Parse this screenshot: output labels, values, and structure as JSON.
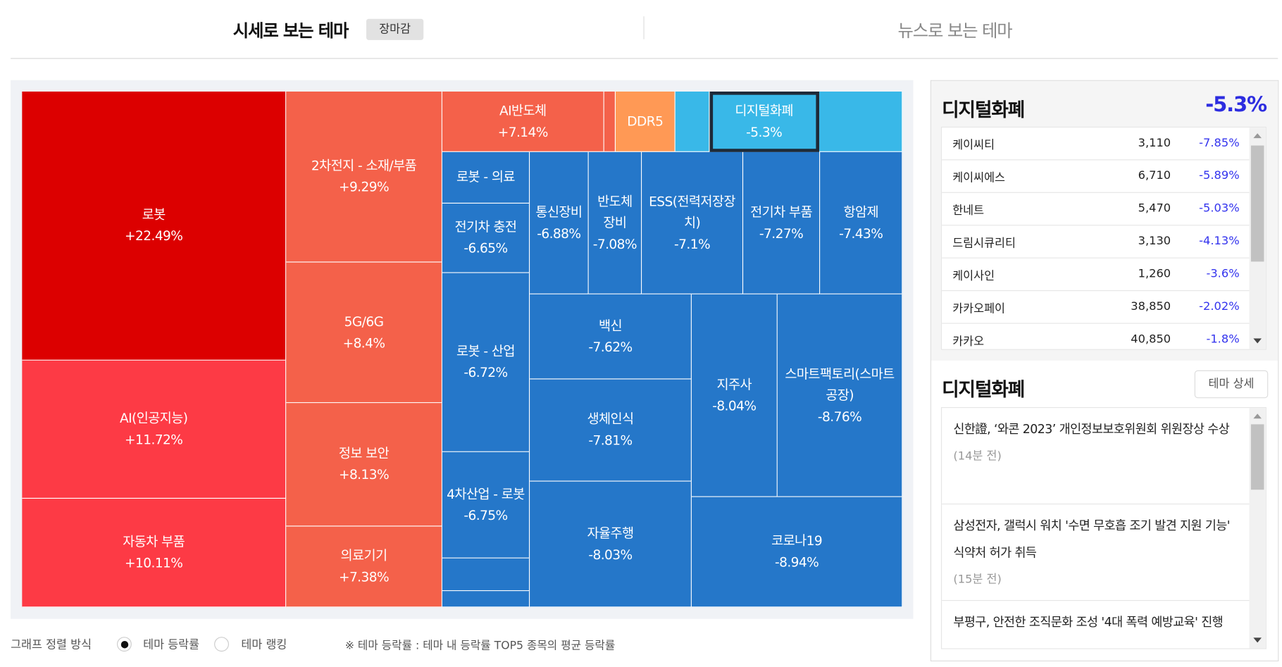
{
  "header": {
    "tab_price": "시세로 보는 테마",
    "market_status": "장마감",
    "tab_news": "뉴스로 보는 테마"
  },
  "treemap": {
    "tiles": [
      {
        "name": "로봇",
        "rate": "+22.49%"
      },
      {
        "name": "AI(인공지능)",
        "rate": "+11.72%"
      },
      {
        "name": "자동차 부품",
        "rate": "+10.11%"
      },
      {
        "name": "2차전지 - 소재/부품",
        "rate": "+9.29%"
      },
      {
        "name": "5G/6G",
        "rate": "+8.4%"
      },
      {
        "name": "정보 보안",
        "rate": "+8.13%"
      },
      {
        "name": "의료기기",
        "rate": "+7.38%"
      },
      {
        "name": "AI반도체",
        "rate": "+7.14%"
      },
      {
        "name": "DDR5",
        "rate": ""
      },
      {
        "name": "디지털화폐",
        "rate": "-5.3%"
      },
      {
        "name": "로봇 - 의료",
        "rate": ""
      },
      {
        "name": "전기차 충전",
        "rate": "-6.65%"
      },
      {
        "name": "로봇 - 산업",
        "rate": "-6.72%"
      },
      {
        "name": "4차산업 - 로봇",
        "rate": "-6.75%"
      },
      {
        "name": "통신장비",
        "rate": "-6.88%"
      },
      {
        "name": "반도체 장비",
        "rate": "-7.08%"
      },
      {
        "name": "ESS(전력저장장치)",
        "rate": "-7.1%"
      },
      {
        "name": "전기차 부품",
        "rate": "-7.27%"
      },
      {
        "name": "항암제",
        "rate": "-7.43%"
      },
      {
        "name": "백신",
        "rate": "-7.62%"
      },
      {
        "name": "생체인식",
        "rate": "-7.81%"
      },
      {
        "name": "자율주행",
        "rate": "-8.03%"
      },
      {
        "name": "지주사",
        "rate": "-8.04%"
      },
      {
        "name": "스마트팩토리(스마트공장)",
        "rate": "-8.76%"
      },
      {
        "name": "코로나19",
        "rate": "-8.94%"
      }
    ],
    "colors": {
      "strong_up": "#dc0000",
      "up": "#fd3a45",
      "mild_up": "#f4614a",
      "slight_up": "#ff9955",
      "slight_down": "#39b8e8",
      "down": "#2577c9"
    },
    "selected": "디지털화폐"
  },
  "footer": {
    "sort_label": "그래프 정렬 방식",
    "option_rate": "테마 등락률",
    "option_rank": "테마 랭킹",
    "selected": "테마 등락률",
    "note": "※ 테마 등락률 : 테마 내 등락률 TOP5 종목의 평균 등락률"
  },
  "detail": {
    "theme": "디지털화폐",
    "rate": "-5.3%",
    "stocks": [
      {
        "name": "케이씨티",
        "price": "3,110",
        "change": "-7.85%"
      },
      {
        "name": "케이씨에스",
        "price": "6,710",
        "change": "-5.89%"
      },
      {
        "name": "한네트",
        "price": "5,470",
        "change": "-5.03%"
      },
      {
        "name": "드림시큐리티",
        "price": "3,130",
        "change": "-4.13%"
      },
      {
        "name": "케이사인",
        "price": "1,260",
        "change": "-3.6%"
      },
      {
        "name": "카카오페이",
        "price": "38,850",
        "change": "-2.02%"
      },
      {
        "name": "카카오",
        "price": "40,850",
        "change": "-1.8%"
      }
    ],
    "news_title": "디지털화폐",
    "detail_button": "테마 상세",
    "news": [
      {
        "title": "신한證, ‘와콘 2023’ 개인정보보호위원회 위원장상 수상",
        "time": "(14분 전)"
      },
      {
        "title": "삼성전자, 갤럭시 워치 '수면 무호흡 조기 발견 지원 기능' 식약처 허가 취득",
        "time": "(15분 전)"
      },
      {
        "title": "부평구, 안전한 조직문화 조성 '4대 폭력 예방교육' 진행",
        "time": ""
      }
    ]
  }
}
